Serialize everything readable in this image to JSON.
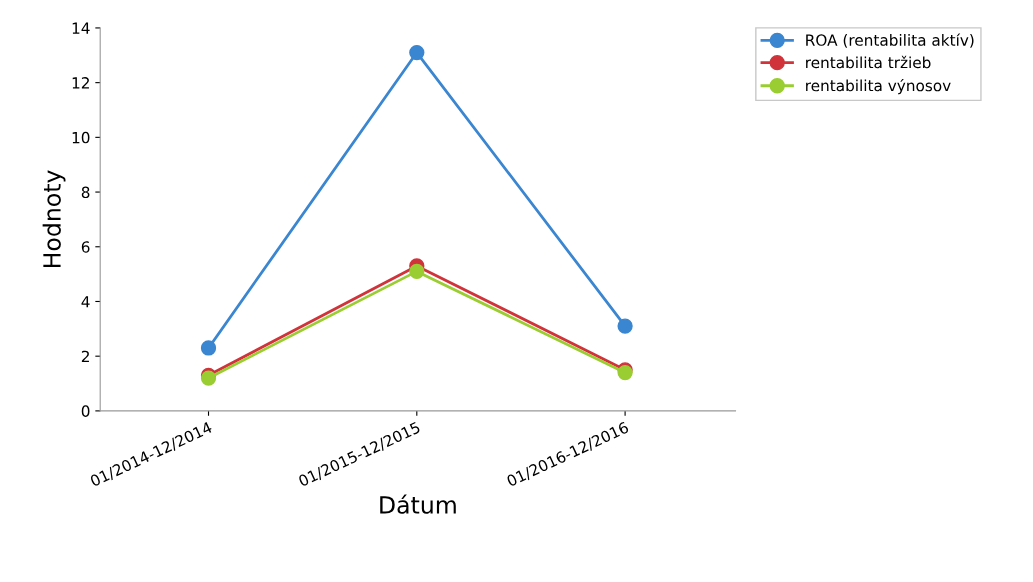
{
  "chart_data": {
    "type": "line",
    "xlabel": "Dátum",
    "ylabel": "Hodnoty",
    "categories": [
      "01/2014-12/2014",
      "01/2015-12/2015",
      "01/2016-12/2016"
    ],
    "series": [
      {
        "name": "ROA (rentabilita aktív)",
        "color": "#3b86d0",
        "values": [
          2.3,
          13.1,
          3.1
        ]
      },
      {
        "name": "rentabilita tržieb",
        "color": "#d0343a",
        "values": [
          1.3,
          5.3,
          1.5
        ]
      },
      {
        "name": "rentabilita výnosov",
        "color": "#9acd32",
        "values": [
          1.2,
          5.1,
          1.4
        ]
      }
    ],
    "ylim": [
      0,
      14
    ],
    "yticks": [
      0,
      2,
      4,
      6,
      8,
      10,
      12,
      14
    ],
    "grid": false,
    "legend": "top right",
    "marker": "circle",
    "line_style": "solid"
  }
}
